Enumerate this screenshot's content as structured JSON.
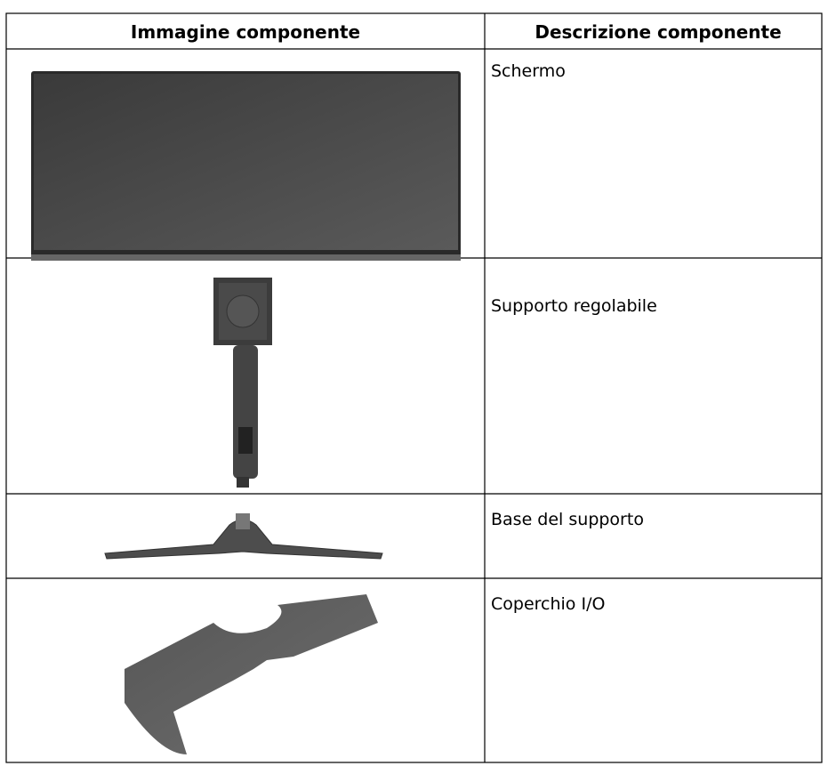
{
  "table": {
    "headers": [
      "Immagine componente",
      "Descrizione componente"
    ],
    "rows": [
      {
        "description": "Schermo"
      },
      {
        "description": "Supporto regolabile"
      },
      {
        "description": "Base del supporto"
      },
      {
        "description": "Coperchio I/O"
      }
    ]
  }
}
